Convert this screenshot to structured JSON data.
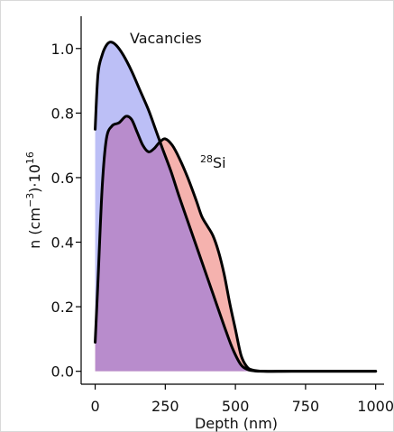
{
  "chart_data": {
    "type": "area",
    "xlabel": "Depth (nm)",
    "ylabel": {
      "prefix": "n (cm",
      "exp1": "−3",
      "mid": ")·10",
      "exp2": "16"
    },
    "xlim": [
      -50,
      1030
    ],
    "ylim": [
      -0.04,
      1.1
    ],
    "xticks": [
      0,
      250,
      500,
      750,
      1000
    ],
    "yticks": [
      0.0,
      0.2,
      0.4,
      0.6,
      0.8,
      1.0
    ],
    "xtick_labels": [
      "0",
      "250",
      "500",
      "750",
      "1000"
    ],
    "ytick_labels": [
      "0.0",
      "0.2",
      "0.4",
      "0.6",
      "0.8",
      "1.0"
    ],
    "grid": false,
    "series": [
      {
        "label": "Vacancies",
        "fill": "#b8bcf6",
        "line": "#000000",
        "x": [
          0,
          10,
          25,
          40,
          55,
          75,
          100,
          130,
          160,
          190,
          215,
          240,
          270,
          300,
          340,
          380,
          420,
          460,
          490,
          520,
          545,
          570,
          600,
          650,
          700,
          800,
          900,
          1000
        ],
        "y": [
          0.75,
          0.92,
          0.98,
          1.01,
          1.02,
          1.01,
          0.98,
          0.93,
          0.87,
          0.81,
          0.75,
          0.69,
          0.62,
          0.54,
          0.44,
          0.34,
          0.24,
          0.14,
          0.07,
          0.02,
          0.005,
          0.001,
          0.0,
          0.0,
          0.0,
          0.0,
          0.0,
          0.0
        ]
      },
      {
        "label": "28Si",
        "label_super": "28",
        "label_base": "Si",
        "fill": "#f4aeaa",
        "line": "#000000",
        "x": [
          0,
          10,
          25,
          40,
          60,
          85,
          110,
          130,
          150,
          170,
          190,
          210,
          230,
          250,
          275,
          300,
          330,
          360,
          380,
          400,
          420,
          440,
          460,
          480,
          500,
          520,
          540,
          560,
          600,
          700,
          800,
          900,
          1000
        ],
        "y": [
          0.09,
          0.28,
          0.57,
          0.72,
          0.76,
          0.77,
          0.79,
          0.78,
          0.74,
          0.7,
          0.68,
          0.69,
          0.71,
          0.72,
          0.7,
          0.66,
          0.6,
          0.53,
          0.48,
          0.45,
          0.42,
          0.37,
          0.3,
          0.21,
          0.13,
          0.05,
          0.015,
          0.004,
          0.0,
          0.0,
          0.0,
          0.0,
          0.0
        ]
      }
    ],
    "overlap_fill": "#b88ccc"
  }
}
